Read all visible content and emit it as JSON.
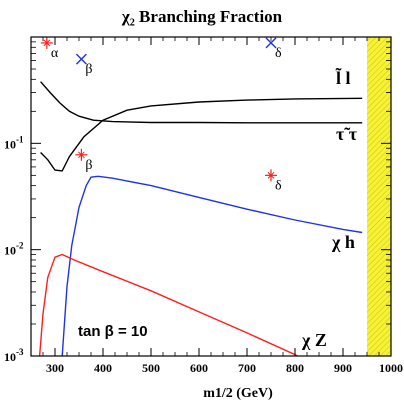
{
  "chart_data": {
    "type": "line",
    "title": "χ₂ Branching Fraction",
    "xlabel": "m1/2 (GeV)",
    "ylabel": "",
    "xlim": [
      250,
      1000
    ],
    "ylim": [
      0.001,
      1
    ],
    "y_scale": "log",
    "x_ticks": [
      "300",
      "400",
      "500",
      "600",
      "700",
      "800",
      "900",
      "1000"
    ],
    "y_ticks": [
      {
        "exp": "-1",
        "value": 0.1
      },
      {
        "exp": "-2",
        "value": 0.01
      },
      {
        "exp": "-3",
        "value": 0.001
      }
    ],
    "excluded_band": {
      "x": [
        950,
        1000
      ],
      "color": "#f6f23a"
    },
    "annotation": "tan β = 10",
    "series": [
      {
        "name": "l̃ l",
        "color": "#000000",
        "points": [
          [
            270,
            0.38
          ],
          [
            290,
            0.3
          ],
          [
            310,
            0.24
          ],
          [
            330,
            0.2
          ],
          [
            350,
            0.18
          ],
          [
            380,
            0.165
          ],
          [
            420,
            0.16
          ],
          [
            500,
            0.157
          ],
          [
            600,
            0.157
          ],
          [
            700,
            0.156
          ],
          [
            800,
            0.156
          ],
          [
            940,
            0.156
          ]
        ]
      },
      {
        "name": "τ̃ τ",
        "color": "#000000",
        "points": [
          [
            270,
            0.082
          ],
          [
            285,
            0.07
          ],
          [
            300,
            0.056
          ],
          [
            315,
            0.055
          ],
          [
            330,
            0.075
          ],
          [
            360,
            0.115
          ],
          [
            400,
            0.165
          ],
          [
            450,
            0.205
          ],
          [
            500,
            0.225
          ],
          [
            600,
            0.245
          ],
          [
            700,
            0.255
          ],
          [
            800,
            0.262
          ],
          [
            940,
            0.265
          ]
        ]
      },
      {
        "name": "χ h",
        "color": "#1f34e8",
        "points": [
          [
            315,
            0.001
          ],
          [
            325,
            0.0045
          ],
          [
            335,
            0.011
          ],
          [
            350,
            0.025
          ],
          [
            365,
            0.04
          ],
          [
            375,
            0.048
          ],
          [
            390,
            0.049
          ],
          [
            420,
            0.047
          ],
          [
            500,
            0.04
          ],
          [
            600,
            0.031
          ],
          [
            700,
            0.024
          ],
          [
            800,
            0.019
          ],
          [
            900,
            0.0155
          ],
          [
            940,
            0.0145
          ]
        ]
      },
      {
        "name": "χ Z",
        "color": "#ff1e1e",
        "points": [
          [
            268,
            0.001
          ],
          [
            275,
            0.0025
          ],
          [
            285,
            0.0055
          ],
          [
            300,
            0.0085
          ],
          [
            315,
            0.009
          ],
          [
            340,
            0.008
          ],
          [
            400,
            0.0062
          ],
          [
            500,
            0.0041
          ],
          [
            600,
            0.0026
          ],
          [
            700,
            0.00165
          ],
          [
            800,
            0.00103
          ],
          [
            805,
            0.001
          ]
        ]
      }
    ],
    "markers": [
      {
        "x": 283,
        "y": 0.88,
        "label": "α",
        "color": "#ff1e1e",
        "shape": "star"
      },
      {
        "x": 355,
        "y": 0.62,
        "label": "β",
        "color": "#1f34e8",
        "shape": "x"
      },
      {
        "x": 750,
        "y": 0.88,
        "label": "δ",
        "color": "#1f34e8",
        "shape": "x"
      },
      {
        "x": 355,
        "y": 0.078,
        "label": "β",
        "color": "#ff1e1e",
        "shape": "star"
      },
      {
        "x": 750,
        "y": 0.05,
        "label": "δ",
        "color": "#ff1e1e",
        "shape": "star"
      }
    ]
  }
}
